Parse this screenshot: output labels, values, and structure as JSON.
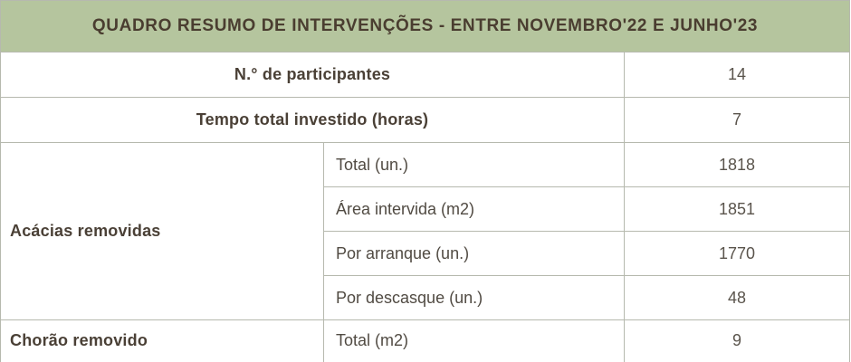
{
  "table": {
    "title": "QUADRO RESUMO DE INTERVENÇÕES - ENTRE NOVEMBRO'22 E JUNHO'23",
    "simple_rows": [
      {
        "label": "N.° de participantes",
        "value": "14"
      },
      {
        "label": "Tempo total investido (horas)",
        "value": "7"
      }
    ],
    "groups": [
      {
        "label": "Acácias removidas",
        "rows": [
          {
            "sublabel": "Total (un.)",
            "value": "1818"
          },
          {
            "sublabel": "Área intervida (m2)",
            "value": "1851"
          },
          {
            "sublabel": "Por arranque (un.)",
            "value": "1770"
          },
          {
            "sublabel": "Por descasque (un.)",
            "value": "48"
          }
        ]
      },
      {
        "label": "Chorão removido",
        "rows": [
          {
            "sublabel": "Total (m2)",
            "value": "9"
          }
        ]
      }
    ],
    "colors": {
      "header_bg": "#b5c59e",
      "header_text": "#4a3d30",
      "label_text": "#4a4036",
      "value_text": "#5a544c",
      "border": "#b6b9ae"
    }
  }
}
